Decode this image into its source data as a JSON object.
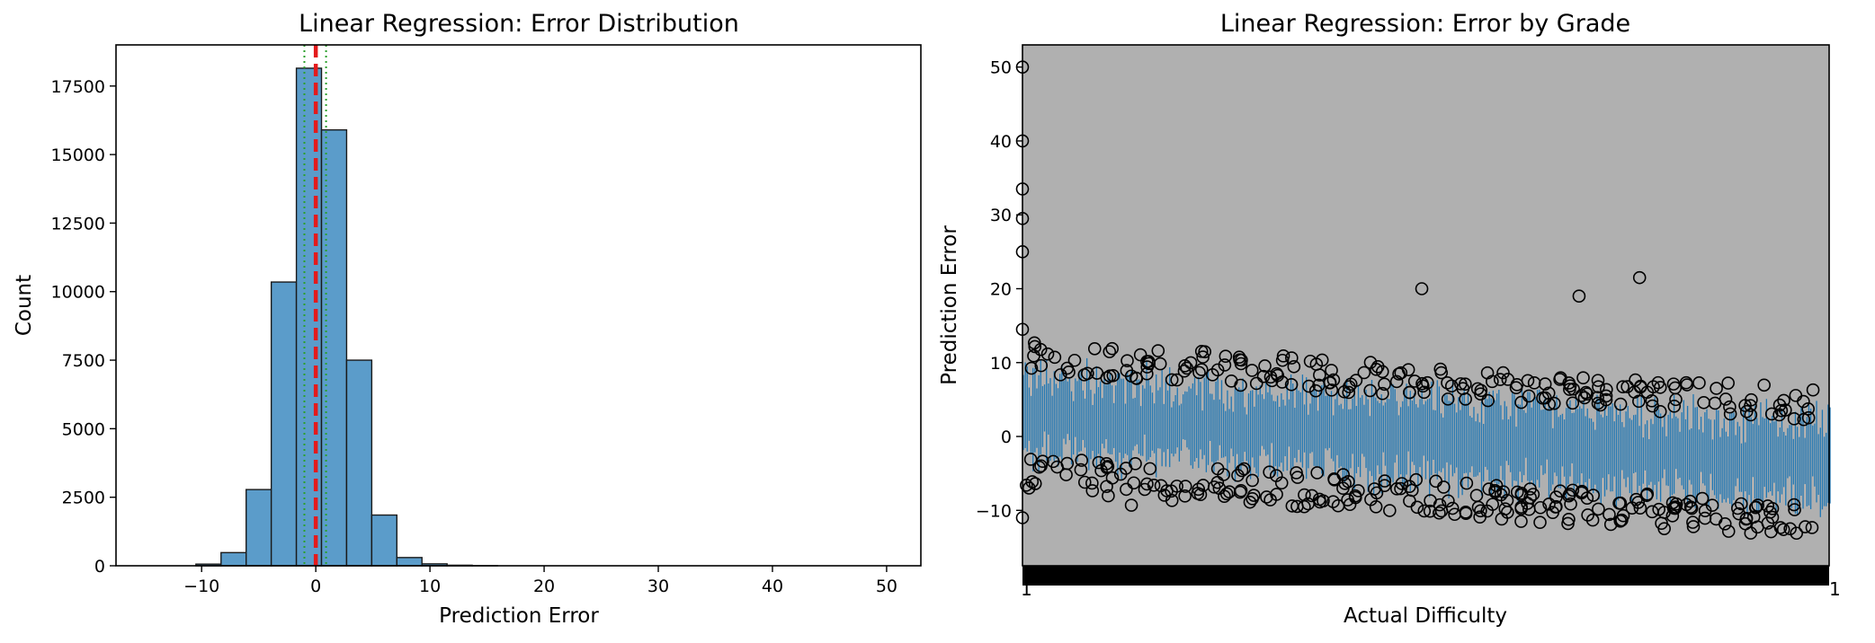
{
  "chart_data": [
    {
      "type": "bar",
      "title": "Linear Regression: Error Distribution",
      "xlabel": "Prediction Error",
      "ylabel": "Count",
      "xlim": [
        -17.5,
        53
      ],
      "ylim": [
        0,
        19000
      ],
      "x_ticks": [
        -10,
        0,
        10,
        20,
        30,
        40,
        50
      ],
      "y_ticks": [
        0,
        2500,
        5000,
        7500,
        10000,
        12500,
        15000,
        17500
      ],
      "bin_width": 2.2,
      "bins": [
        {
          "x0": -10.5,
          "count": 60
        },
        {
          "x0": -8.3,
          "count": 480
        },
        {
          "x0": -6.1,
          "count": 2780
        },
        {
          "x0": -3.9,
          "count": 10350
        },
        {
          "x0": -1.7,
          "count": 18150
        },
        {
          "x0": 0.5,
          "count": 15900
        },
        {
          "x0": 2.7,
          "count": 7500
        },
        {
          "x0": 4.9,
          "count": 1850
        },
        {
          "x0": 7.1,
          "count": 300
        },
        {
          "x0": 9.3,
          "count": 70
        },
        {
          "x0": 11.5,
          "count": 20
        },
        {
          "x0": 13.7,
          "count": 5
        }
      ],
      "reference_lines": [
        {
          "x": 0,
          "style": "dashed",
          "color": "#e41a1c"
        },
        {
          "x": -1.0,
          "style": "dotted",
          "color": "#2ca02c"
        },
        {
          "x": 0.9,
          "style": "dotted",
          "color": "#2ca02c"
        }
      ],
      "bar_color": "#5b9cca",
      "grid": false
    },
    {
      "type": "box",
      "title": "Linear Regression: Error by Grade",
      "xlabel": "Actual Difficulty",
      "ylabel": "Prediction Error",
      "ylim": [
        -17.5,
        53
      ],
      "y_ticks": [
        -10,
        0,
        10,
        20,
        30,
        40,
        50
      ],
      "trend": {
        "start_median": 3,
        "end_median": -3.5
      },
      "outliers": [
        {
          "g": 0.0,
          "y": 50
        },
        {
          "g": 0.0,
          "y": 40
        },
        {
          "g": 0.0,
          "y": 33.5
        },
        {
          "g": 0.0,
          "y": 29.5
        },
        {
          "g": 0.0,
          "y": 25
        },
        {
          "g": 0.0,
          "y": 14.5
        },
        {
          "g": 0.0,
          "y": -11
        },
        {
          "g": 0.495,
          "y": 20
        },
        {
          "g": 0.69,
          "y": 19
        },
        {
          "g": 0.765,
          "y": 21.5
        },
        {
          "g": 0.98,
          "y": 6.3
        },
        {
          "g": 0.135,
          "y": -9.3
        }
      ],
      "facecolor": "#b0b0b0",
      "line_color": "#1f77b4",
      "grid": false
    }
  ]
}
